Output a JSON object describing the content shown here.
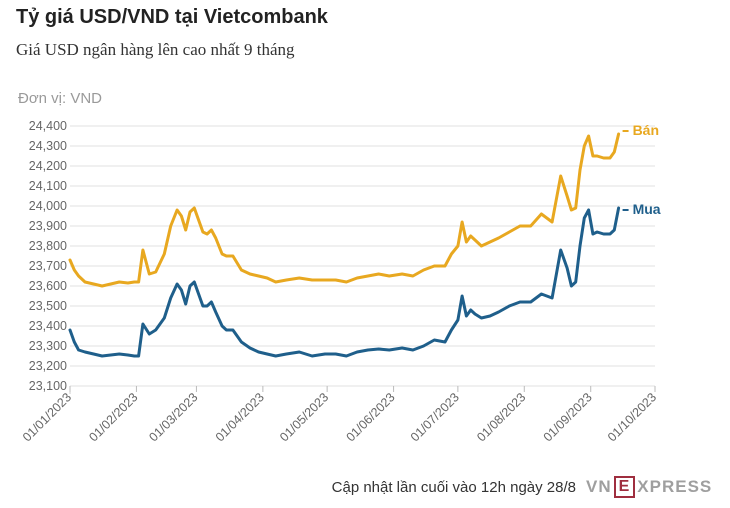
{
  "header": {
    "title": "Tỷ giá USD/VND tại Vietcombank",
    "subtitle": "Giá USD ngân hàng lên cao nhất 9 tháng",
    "unit": "Đơn vị: VND"
  },
  "footer": {
    "updated": "Cập nhật lần cuối vào 12h ngày 28/8",
    "logo_left": "VN",
    "logo_box": "E",
    "logo_right": "XPRESS"
  },
  "colors": {
    "ban": "#e8a820",
    "mua": "#1f5f8b",
    "grid": "#e2e2e2"
  },
  "chart_data": {
    "type": "line",
    "title": "Tỷ giá USD/VND tại Vietcombank",
    "ylabel": "Đơn vị: VND",
    "ylim": [
      23100,
      24400
    ],
    "yticks": [
      23100,
      23200,
      23300,
      23400,
      23500,
      23600,
      23700,
      23800,
      23900,
      24000,
      24100,
      24200,
      24300,
      24400
    ],
    "ytick_labels": [
      "23,100",
      "23,200",
      "23,300",
      "23,400",
      "23,500",
      "23,600",
      "23,700",
      "23,800",
      "23,900",
      "24,000",
      "24,100",
      "24,200",
      "24,300",
      "24,400"
    ],
    "xlim": [
      "2023-01-01",
      "2023-10-01"
    ],
    "xticks": [
      "2023-01-01",
      "2023-02-01",
      "2023-03-01",
      "2023-04-01",
      "2023-05-01",
      "2023-06-01",
      "2023-07-01",
      "2023-08-01",
      "2023-09-01",
      "2023-10-01"
    ],
    "xtick_labels": [
      "01/01/2023",
      "01/02/2023",
      "01/03/2023",
      "01/04/2023",
      "01/05/2023",
      "01/06/2023",
      "01/07/2023",
      "01/08/2023",
      "01/09/2023",
      "01/10/2023"
    ],
    "grid": "horizontal",
    "series": [
      {
        "name": "Bán",
        "x": [
          "2023-01-01",
          "2023-01-03",
          "2023-01-05",
          "2023-01-08",
          "2023-01-12",
          "2023-01-16",
          "2023-01-20",
          "2023-01-24",
          "2023-01-28",
          "2023-01-31",
          "2023-02-02",
          "2023-02-04",
          "2023-02-07",
          "2023-02-10",
          "2023-02-14",
          "2023-02-17",
          "2023-02-20",
          "2023-02-22",
          "2023-02-24",
          "2023-02-26",
          "2023-02-28",
          "2023-03-02",
          "2023-03-04",
          "2023-03-06",
          "2023-03-08",
          "2023-03-10",
          "2023-03-13",
          "2023-03-15",
          "2023-03-18",
          "2023-03-22",
          "2023-03-26",
          "2023-03-30",
          "2023-04-03",
          "2023-04-07",
          "2023-04-12",
          "2023-04-18",
          "2023-04-24",
          "2023-04-30",
          "2023-05-05",
          "2023-05-10",
          "2023-05-15",
          "2023-05-20",
          "2023-05-25",
          "2023-05-30",
          "2023-06-05",
          "2023-06-10",
          "2023-06-15",
          "2023-06-20",
          "2023-06-25",
          "2023-06-28",
          "2023-07-01",
          "2023-07-03",
          "2023-07-05",
          "2023-07-07",
          "2023-07-09",
          "2023-07-12",
          "2023-07-16",
          "2023-07-20",
          "2023-07-25",
          "2023-07-30",
          "2023-08-04",
          "2023-08-09",
          "2023-08-14",
          "2023-08-18",
          "2023-08-21",
          "2023-08-23",
          "2023-08-25",
          "2023-08-27",
          "2023-08-29",
          "2023-08-31",
          "2023-09-02",
          "2023-09-04",
          "2023-09-07",
          "2023-09-10",
          "2023-09-12",
          "2023-09-14"
        ],
        "values": [
          23730,
          23680,
          23650,
          23620,
          23610,
          23600,
          23610,
          23620,
          23615,
          23620,
          23620,
          23780,
          23660,
          23670,
          23760,
          23900,
          23980,
          23950,
          23880,
          23970,
          23990,
          23930,
          23870,
          23860,
          23880,
          23840,
          23760,
          23750,
          23750,
          23680,
          23660,
          23650,
          23640,
          23620,
          23630,
          23640,
          23630,
          23630,
          23630,
          23620,
          23640,
          23650,
          23660,
          23650,
          23660,
          23650,
          23680,
          23700,
          23700,
          23760,
          23800,
          23920,
          23820,
          23850,
          23830,
          23800,
          23820,
          23840,
          23870,
          23900,
          23900,
          23960,
          23920,
          24150,
          24050,
          23980,
          23990,
          24180,
          24300,
          24350,
          24250,
          24250,
          24240,
          24240,
          24270,
          24360
        ]
      },
      {
        "name": "Mua",
        "x": [
          "2023-01-01",
          "2023-01-03",
          "2023-01-05",
          "2023-01-08",
          "2023-01-12",
          "2023-01-16",
          "2023-01-20",
          "2023-01-24",
          "2023-01-28",
          "2023-01-31",
          "2023-02-02",
          "2023-02-04",
          "2023-02-07",
          "2023-02-10",
          "2023-02-14",
          "2023-02-17",
          "2023-02-20",
          "2023-02-22",
          "2023-02-24",
          "2023-02-26",
          "2023-02-28",
          "2023-03-02",
          "2023-03-04",
          "2023-03-06",
          "2023-03-08",
          "2023-03-10",
          "2023-03-13",
          "2023-03-15",
          "2023-03-18",
          "2023-03-22",
          "2023-03-26",
          "2023-03-30",
          "2023-04-03",
          "2023-04-07",
          "2023-04-12",
          "2023-04-18",
          "2023-04-24",
          "2023-04-30",
          "2023-05-05",
          "2023-05-10",
          "2023-05-15",
          "2023-05-20",
          "2023-05-25",
          "2023-05-30",
          "2023-06-05",
          "2023-06-10",
          "2023-06-15",
          "2023-06-20",
          "2023-06-25",
          "2023-06-28",
          "2023-07-01",
          "2023-07-03",
          "2023-07-05",
          "2023-07-07",
          "2023-07-09",
          "2023-07-12",
          "2023-07-16",
          "2023-07-20",
          "2023-07-25",
          "2023-07-30",
          "2023-08-04",
          "2023-08-09",
          "2023-08-14",
          "2023-08-18",
          "2023-08-21",
          "2023-08-23",
          "2023-08-25",
          "2023-08-27",
          "2023-08-29",
          "2023-08-31",
          "2023-09-02",
          "2023-09-04",
          "2023-09-07",
          "2023-09-10",
          "2023-09-12",
          "2023-09-14"
        ],
        "values": [
          23380,
          23320,
          23280,
          23270,
          23260,
          23250,
          23255,
          23260,
          23255,
          23250,
          23250,
          23410,
          23360,
          23380,
          23440,
          23540,
          23610,
          23580,
          23510,
          23600,
          23620,
          23560,
          23500,
          23500,
          23520,
          23470,
          23400,
          23380,
          23380,
          23320,
          23290,
          23270,
          23260,
          23250,
          23260,
          23270,
          23250,
          23260,
          23260,
          23250,
          23270,
          23280,
          23285,
          23280,
          23290,
          23280,
          23300,
          23330,
          23320,
          23380,
          23430,
          23550,
          23450,
          23480,
          23460,
          23440,
          23450,
          23470,
          23500,
          23520,
          23520,
          23560,
          23540,
          23780,
          23690,
          23600,
          23620,
          23800,
          23940,
          23980,
          23860,
          23870,
          23860,
          23860,
          23880,
          23990
        ]
      }
    ],
    "end_labels": [
      "Bán",
      "Mua"
    ]
  }
}
